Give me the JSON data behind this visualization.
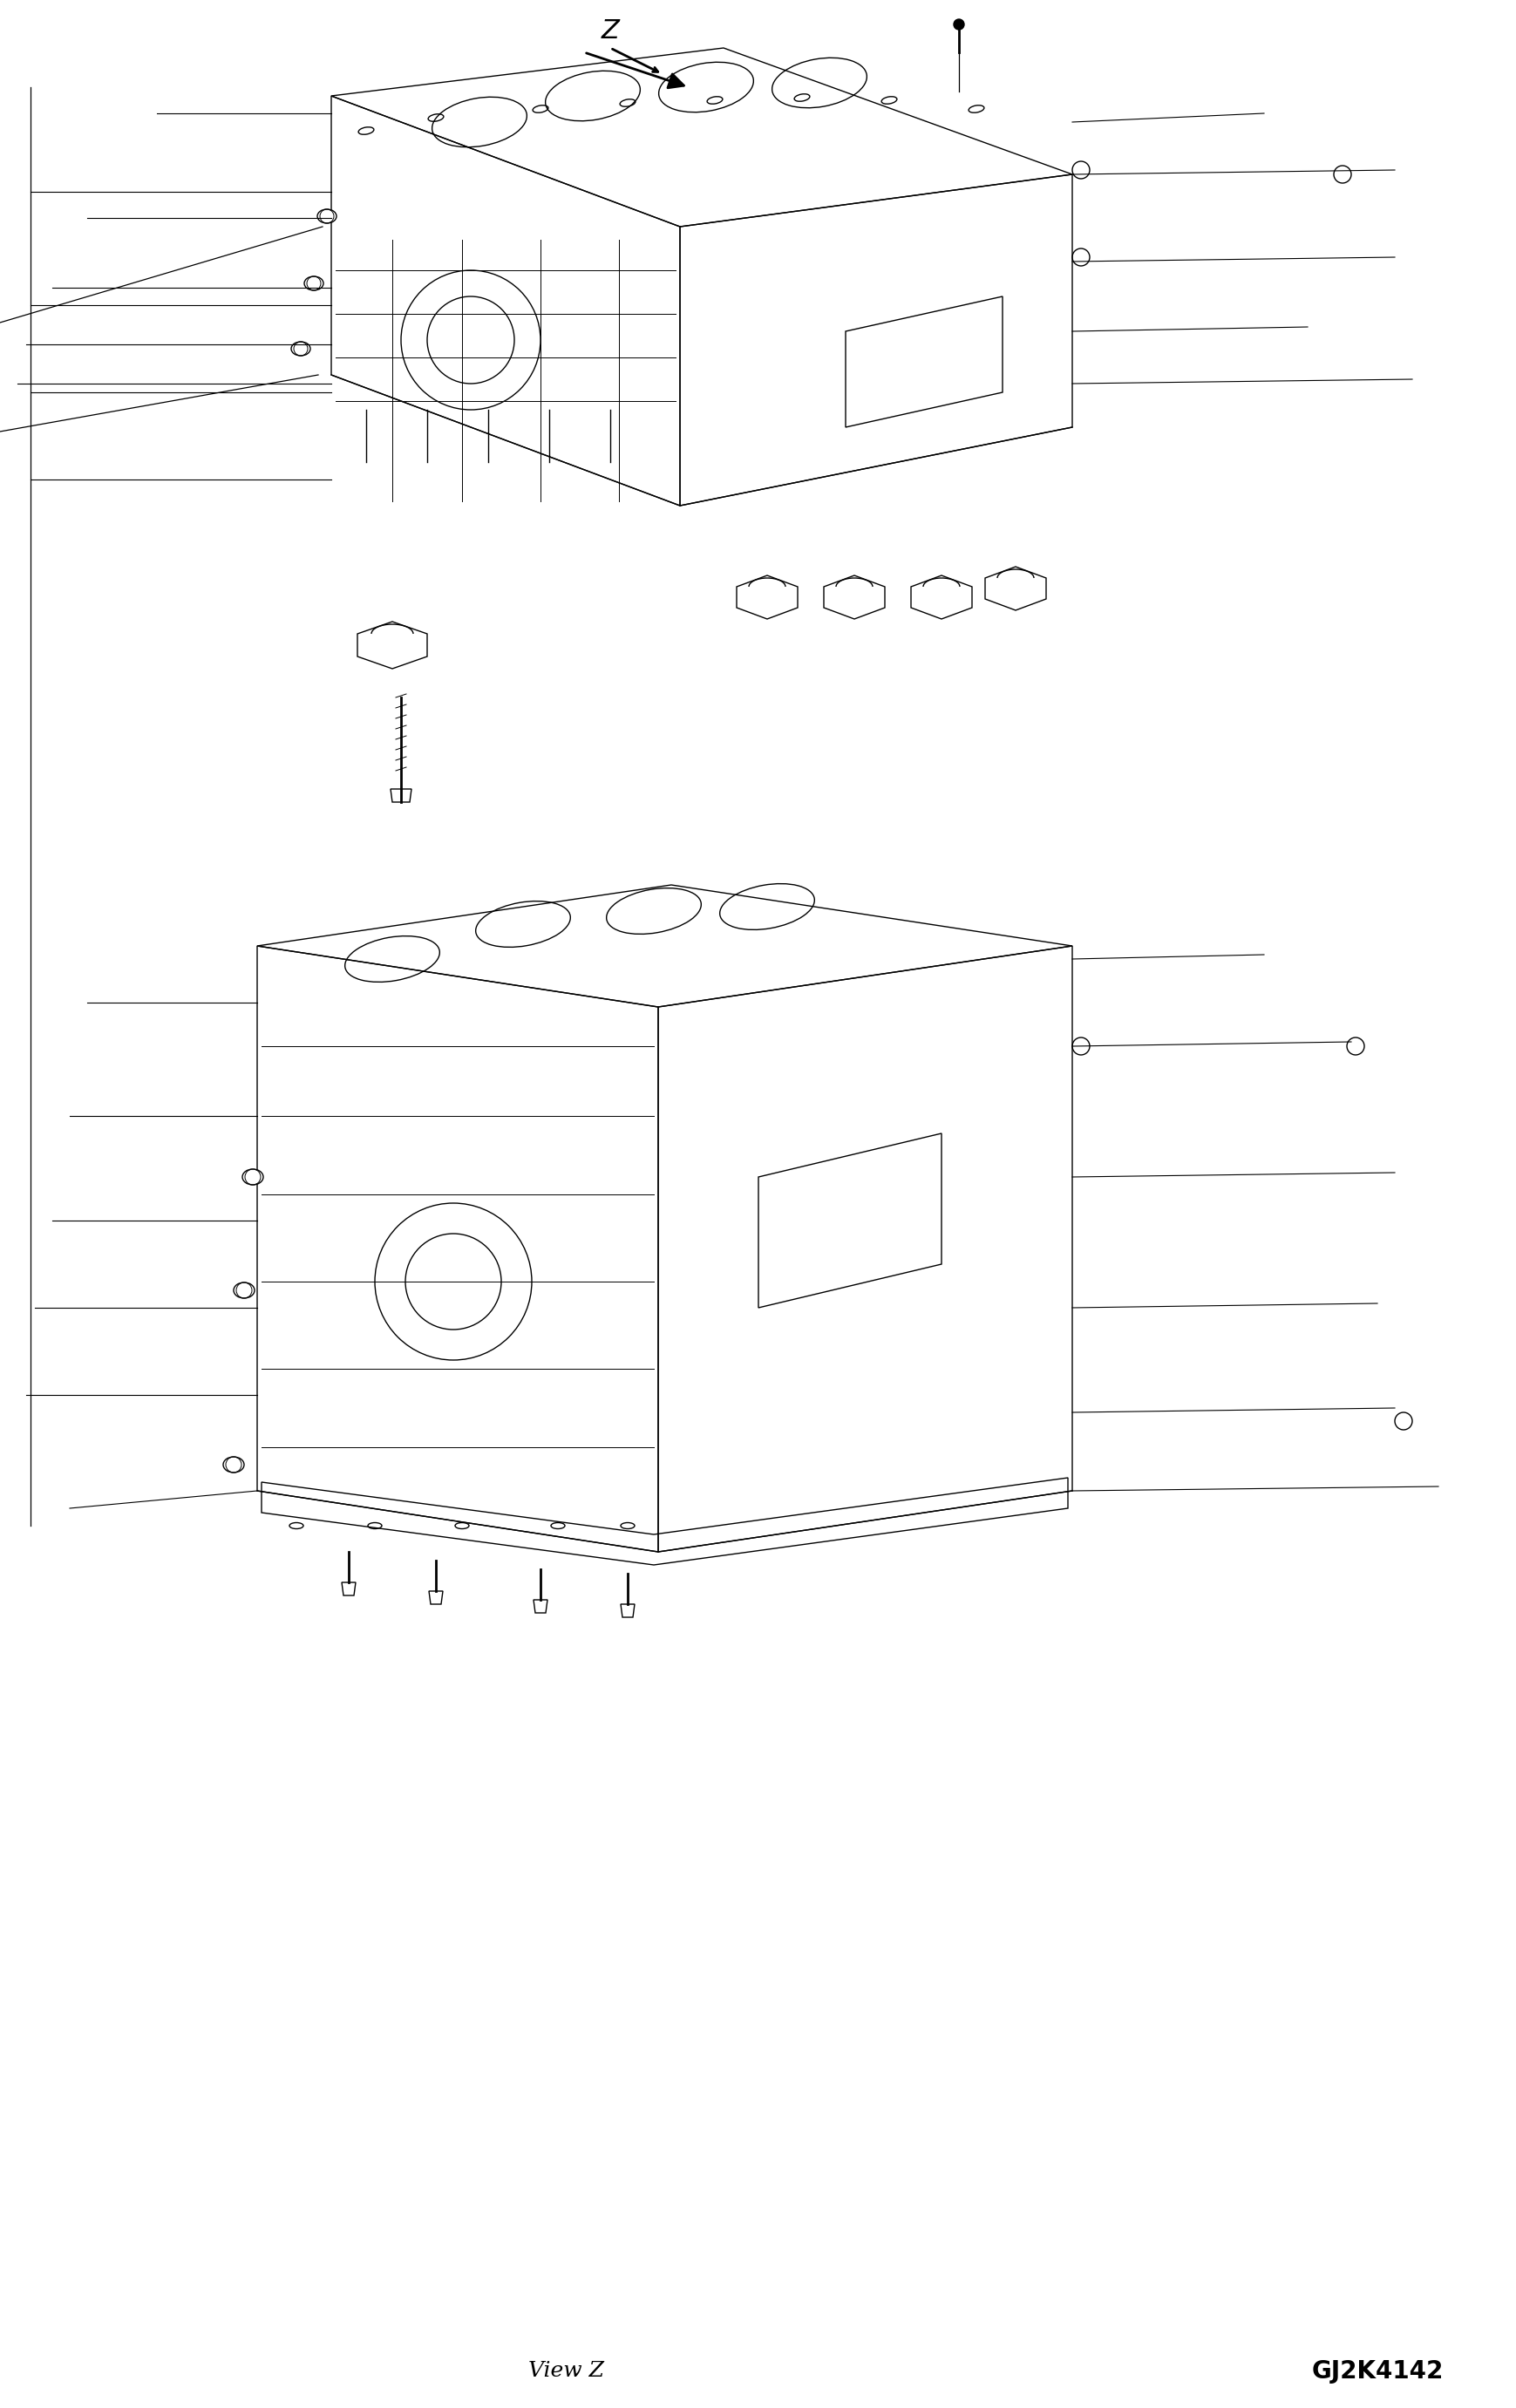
{
  "fig_width": 17.39,
  "fig_height": 27.62,
  "bg_color": "#ffffff",
  "line_color": "#000000",
  "line_width": 1.0,
  "text_bottom_left": "View Z",
  "text_bottom_right": "GJ2K4142",
  "text_z": "Z",
  "font_size_label": 18,
  "font_size_code": 20
}
